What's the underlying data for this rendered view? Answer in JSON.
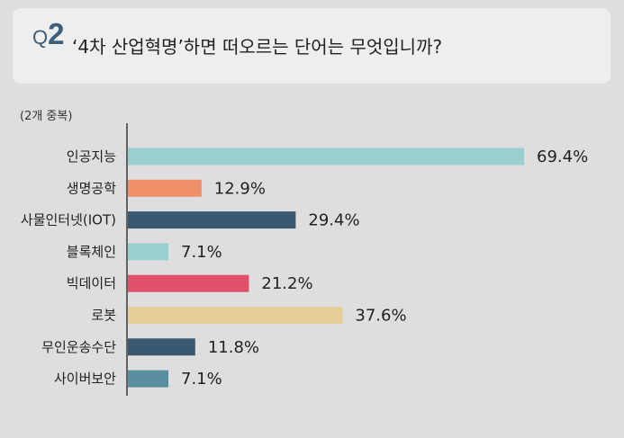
{
  "question": {
    "number_prefix": "Q",
    "number": "2",
    "text": "‘4차 산업혁명’하면 떠오르는 단어는 무엇입니까?"
  },
  "note": "(2개 중복)",
  "chart_data": {
    "type": "bar",
    "orientation": "horizontal",
    "categories": [
      "인공지능",
      "생명공학",
      "사물인터넷(IOT)",
      "블록체인",
      "빅데이터",
      "로봇",
      "무인운송수단",
      "사이버보안"
    ],
    "values": [
      69.4,
      12.9,
      29.4,
      7.1,
      21.2,
      37.6,
      11.8,
      7.1
    ],
    "value_labels": [
      "69.4%",
      "12.9%",
      "29.4%",
      "7.1%",
      "21.2%",
      "37.6%",
      "11.8%",
      "7.1%"
    ],
    "colors": [
      "#99cfcf",
      "#f0906a",
      "#3a5870",
      "#99cfcf",
      "#e05068",
      "#e4cf98",
      "#3a5870",
      "#5a8e9e"
    ],
    "unit": "%",
    "xlim": [
      0,
      100
    ],
    "grid": false,
    "legend": "none",
    "axis_color": "#3a3a3a"
  }
}
